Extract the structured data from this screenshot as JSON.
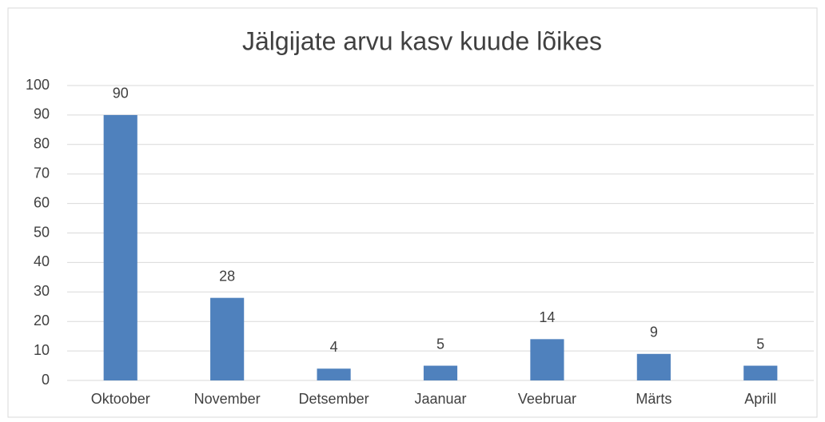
{
  "chart_data": {
    "type": "bar",
    "title": "Jälgijate arvu kasv kuude lõikes",
    "categories": [
      "Oktoober",
      "November",
      "Detsember",
      "Jaanuar",
      "Veebruar",
      "Märts",
      "Aprill"
    ],
    "values": [
      90,
      28,
      4,
      5,
      14,
      9,
      5
    ],
    "color": "#4f81bd",
    "ylim": [
      0,
      100
    ],
    "yticks": [
      0,
      10,
      20,
      30,
      40,
      50,
      60,
      70,
      80,
      90,
      100
    ],
    "grid": true
  }
}
